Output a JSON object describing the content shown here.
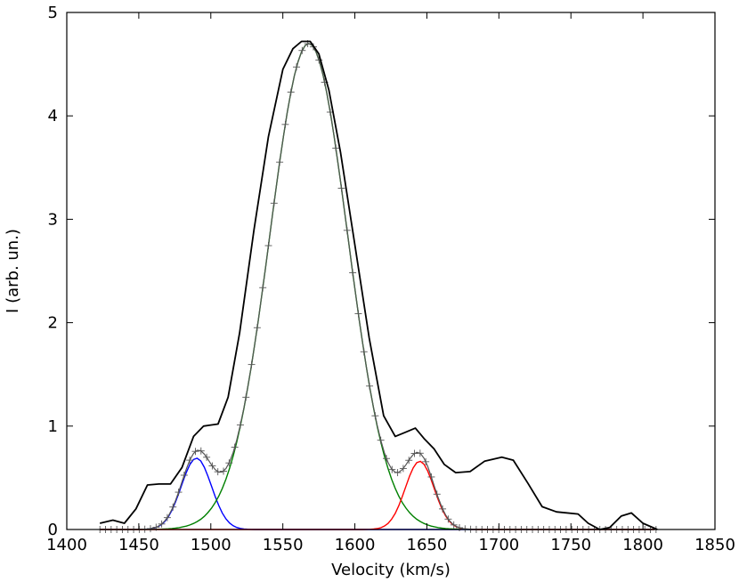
{
  "chart_data": {
    "type": "line",
    "title": "",
    "xlabel": "Velocity (km/s)",
    "ylabel": "I (arb. un.)",
    "xlim": [
      1400,
      1850
    ],
    "ylim": [
      0,
      5
    ],
    "x_ticks": [
      1400,
      1450,
      1500,
      1550,
      1600,
      1650,
      1700,
      1750,
      1800,
      1850
    ],
    "y_ticks": [
      0,
      1,
      2,
      3,
      4,
      5
    ],
    "x_tick_labels": [
      "1400",
      "1450",
      "1500",
      "1550",
      "1600",
      "1650",
      "1700",
      "1750",
      "1800",
      "1850"
    ],
    "y_tick_labels": [
      "0",
      "1",
      "2",
      "3",
      "4",
      "5"
    ],
    "grid": false,
    "legend": "none",
    "colors": {
      "observed": "#000000",
      "fit_total": "#555555",
      "component_blue": "#0000ff",
      "component_green": "#008000",
      "component_red": "#ff0000"
    },
    "series": [
      {
        "kind": "observed",
        "x": [
          1423,
          1432,
          1440,
          1448,
          1456,
          1464,
          1472,
          1480,
          1488,
          1495,
          1500,
          1505,
          1512,
          1520,
          1530,
          1540,
          1550,
          1557,
          1563,
          1569,
          1575,
          1582,
          1590,
          1600,
          1610,
          1620,
          1628,
          1635,
          1642,
          1648,
          1655,
          1662,
          1670,
          1680,
          1690,
          1702,
          1710,
          1720,
          1730,
          1740,
          1755,
          1762,
          1770,
          1777,
          1785,
          1792,
          1800,
          1810
        ],
        "y": [
          0.06,
          0.09,
          0.06,
          0.2,
          0.43,
          0.44,
          0.44,
          0.6,
          0.9,
          1.0,
          1.01,
          1.02,
          1.28,
          1.9,
          2.9,
          3.8,
          4.45,
          4.65,
          4.72,
          4.72,
          4.6,
          4.25,
          3.65,
          2.75,
          1.85,
          1.1,
          0.9,
          0.94,
          0.98,
          0.88,
          0.78,
          0.63,
          0.55,
          0.56,
          0.66,
          0.7,
          0.67,
          0.45,
          0.22,
          0.17,
          0.15,
          0.06,
          0.0,
          0.02,
          0.13,
          0.16,
          0.06,
          0.0
        ]
      },
      {
        "kind": "model",
        "style": "plus-markers",
        "components": [
          {
            "amplitude": 0.69,
            "center": 1490,
            "sigma": 10.5,
            "color": "component_blue"
          },
          {
            "amplitude": 4.7,
            "center": 1568,
            "sigma": 27.0,
            "color": "component_green"
          },
          {
            "amplitude": 0.66,
            "center": 1645,
            "sigma": 10.0,
            "color": "component_red"
          }
        ]
      }
    ]
  }
}
